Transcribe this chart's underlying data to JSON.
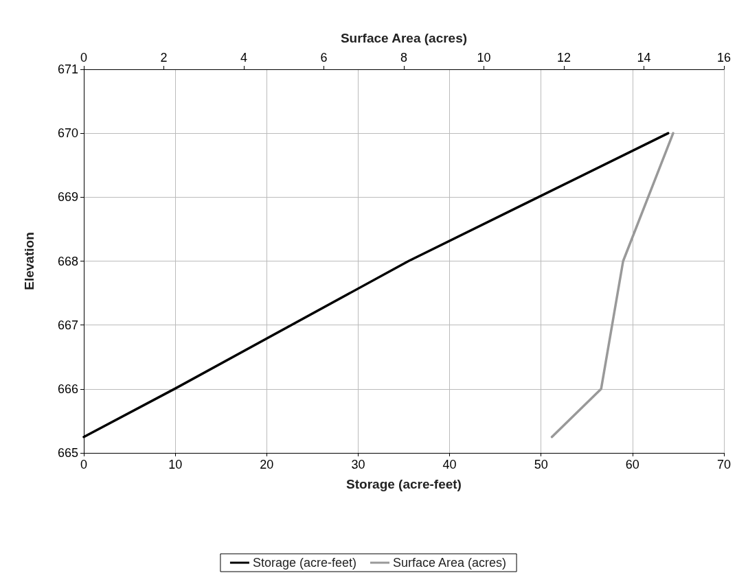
{
  "chart_data": {
    "type": "line",
    "xlabel": "Storage (acre-feet)",
    "x2label": "Surface Area (acres)",
    "ylabel": "Elevation",
    "xlim": [
      0,
      70
    ],
    "xticks": [
      0,
      10,
      20,
      30,
      40,
      50,
      60,
      70
    ],
    "x2lim": [
      0,
      16
    ],
    "x2ticks": [
      0,
      2,
      4,
      6,
      8,
      10,
      12,
      14,
      16
    ],
    "ylim": [
      665,
      671
    ],
    "yticks": [
      665,
      666,
      667,
      668,
      669,
      670,
      671
    ],
    "grid": true,
    "legend": "bottom",
    "marker": "none",
    "line_style": "solid",
    "series": [
      {
        "name": "Storage (acre-feet)",
        "color": "#000000",
        "x": [
          0,
          9.9,
          35.5,
          63.9
        ],
        "values": [
          665.25,
          666,
          668,
          670
        ]
      },
      {
        "name": "Surface Area (acres)",
        "color": "#999999",
        "axis": "x2",
        "x": [
          11.7,
          12.93,
          13.48,
          14.73
        ],
        "values": [
          665.25,
          666,
          668,
          670
        ]
      }
    ]
  }
}
